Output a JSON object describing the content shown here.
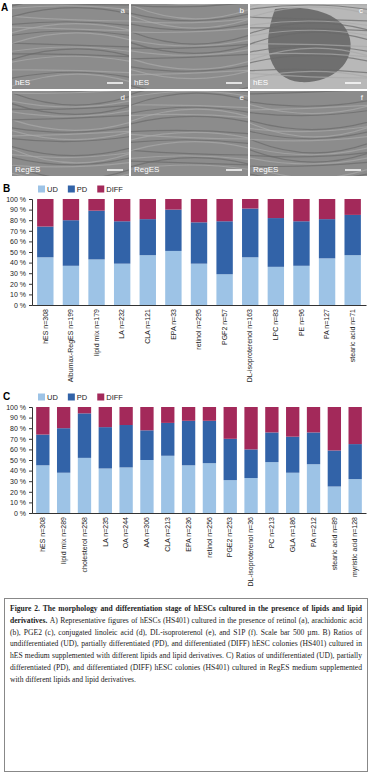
{
  "panel_a": {
    "label": "A",
    "images": [
      {
        "letter": "a",
        "label": "hES"
      },
      {
        "letter": "b",
        "label": "hES"
      },
      {
        "letter": "c",
        "label": "hES"
      },
      {
        "letter": "d",
        "label": "RegES"
      },
      {
        "letter": "e",
        "label": "RegES"
      },
      {
        "letter": "f",
        "label": "RegES"
      }
    ]
  },
  "chart_data": [
    {
      "type": "bar",
      "title": "B",
      "stacked": true,
      "grid": false,
      "legend": "top-left",
      "categories": [
        "hES n=308",
        "Albumax-RegES n=199",
        "lipid mix n=179",
        "LA n=232",
        "CLA n=121",
        "EPA n=33",
        "retinol n=295",
        "PGF2 n=57",
        "DL-isoproterenol n=163",
        "LPC n=83",
        "PE n=96",
        "PA n=127",
        "stearic acid n=71"
      ],
      "series": [
        {
          "name": "UD",
          "color": "#9dc3e6",
          "values": [
            45,
            37,
            43,
            39,
            47,
            51,
            39,
            29,
            45,
            36,
            37,
            44,
            47
          ]
        },
        {
          "name": "PD",
          "color": "#3263a8",
          "values": [
            29,
            43,
            46,
            40,
            34,
            39,
            39,
            50,
            46,
            46,
            42,
            37,
            38
          ]
        },
        {
          "name": "DIFF",
          "color": "#a3295a",
          "values": [
            26,
            20,
            11,
            21,
            19,
            10,
            22,
            21,
            9,
            18,
            21,
            19,
            15
          ]
        }
      ],
      "ylim": [
        0,
        100
      ],
      "yticks": [
        {
          "value": 0,
          "label": "0 %"
        },
        {
          "value": 10,
          "label": "10 %"
        },
        {
          "value": 20,
          "label": "20 %"
        },
        {
          "value": 30,
          "label": "30 %"
        },
        {
          "value": 40,
          "label": "40 %"
        },
        {
          "value": 50,
          "label": "50 %"
        },
        {
          "value": 60,
          "label": "60 %"
        },
        {
          "value": 70,
          "label": "70 %"
        },
        {
          "value": 80,
          "label": "80 %"
        },
        {
          "value": 90,
          "label": "90 %"
        },
        {
          "value": 100,
          "label": "100 %"
        }
      ]
    },
    {
      "type": "bar",
      "title": "C",
      "stacked": true,
      "grid": false,
      "legend": "top-left",
      "categories": [
        "hES n=308",
        "lipid mix n=289",
        "cholesterol n=258",
        "LA n=235",
        "OA n=244",
        "AA n=306",
        "CLA n=213",
        "EPA n=236",
        "retinol n=256",
        "PGE2 n=253",
        "DL-isoproterenol n=36",
        "PC n=213",
        "GLA n=186",
        "PA n=212",
        "stearic acid n=89",
        "myristic acid n=128"
      ],
      "series": [
        {
          "name": "UD",
          "color": "#9dc3e6",
          "values": [
            45,
            38,
            52,
            42,
            43,
            50,
            54,
            45,
            47,
            31,
            33,
            48,
            38,
            46,
            25,
            32
          ]
        },
        {
          "name": "PD",
          "color": "#3263a8",
          "values": [
            29,
            42,
            42,
            39,
            40,
            28,
            31,
            42,
            40,
            39,
            27,
            28,
            34,
            30,
            34,
            33
          ]
        },
        {
          "name": "DIFF",
          "color": "#a3295a",
          "values": [
            26,
            20,
            6,
            19,
            17,
            22,
            15,
            13,
            13,
            30,
            40,
            24,
            28,
            24,
            41,
            35
          ]
        }
      ],
      "ylim": [
        0,
        100
      ],
      "yticks": [
        {
          "value": 0,
          "label": "0 %"
        },
        {
          "value": 10,
          "label": "10 %"
        },
        {
          "value": 20,
          "label": "20 %"
        },
        {
          "value": 30,
          "label": "30 %"
        },
        {
          "value": 40,
          "label": "40 %"
        },
        {
          "value": 50,
          "label": "50 %"
        },
        {
          "value": 60,
          "label": "60 %"
        },
        {
          "value": 70,
          "label": "70 %"
        },
        {
          "value": 80,
          "label": "80 %"
        },
        {
          "value": 90,
          "label": "90 %"
        },
        {
          "value": 100,
          "label": "100 %"
        }
      ]
    }
  ],
  "caption": {
    "title": "Figure 2. The morphology and differentiation stage of hESCs cultured in the presence of lipids and lipid derivatives.",
    "text": "A) Representative figures of hESCs (HS401) cultured in the presence of retinol (a), arachidonic acid (b), PGE2 (c), conjugated linoleic acid (d), DL-isoproterenol (e), and S1P (f). Scale bar 500 µm. B) Ratios of undifferentiated (UD), partially differentiated (PD), and differentiated (DIFF) hESC colonies (HS401) cultured in hES medium supplemented with different lipids and lipid derivatives. C) Ratios of undifferentiated (UD), partially differentiated (PD), and differentiated (DIFF) hESC colonies (HS401) cultured in RegES medium supplemented with different lipids and lipid derivatives."
  }
}
